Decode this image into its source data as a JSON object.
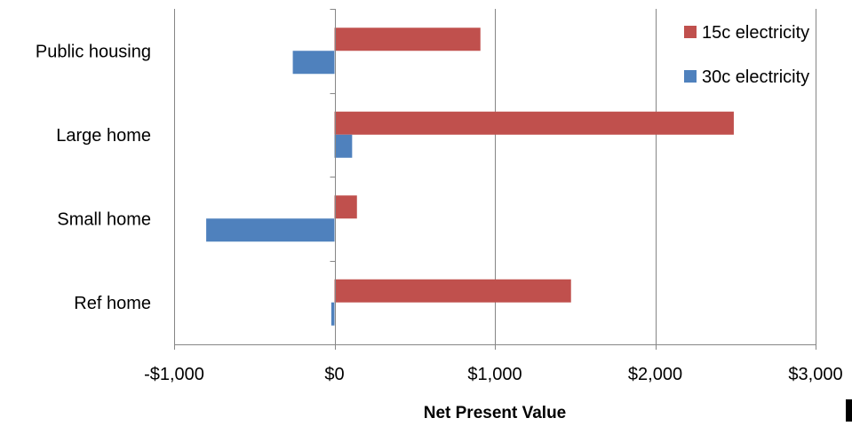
{
  "chart_data": {
    "type": "bar",
    "orientation": "horizontal",
    "categories": [
      "Public housing",
      "Large home",
      "Small home",
      "Ref home"
    ],
    "series": [
      {
        "name": "15c electricity",
        "color": "#C0504D",
        "values": [
          910,
          2490,
          140,
          1475
        ]
      },
      {
        "name": "30c electricity",
        "color": "#4F81BD",
        "values": [
          -260,
          110,
          -800,
          -20
        ]
      }
    ],
    "xlabel": "Net Present Value",
    "ylabel": "",
    "title": "",
    "xlim": [
      -1000,
      3000
    ],
    "xticks": [
      -1000,
      0,
      1000,
      2000,
      3000
    ],
    "xtick_labels": [
      "-$1,000",
      "$0",
      "$1,000",
      "$2,000",
      "$3,000"
    ],
    "grid": "vertical",
    "legend_position": "top-right",
    "gridline_color": "#868686",
    "axis_color": "#868686"
  }
}
